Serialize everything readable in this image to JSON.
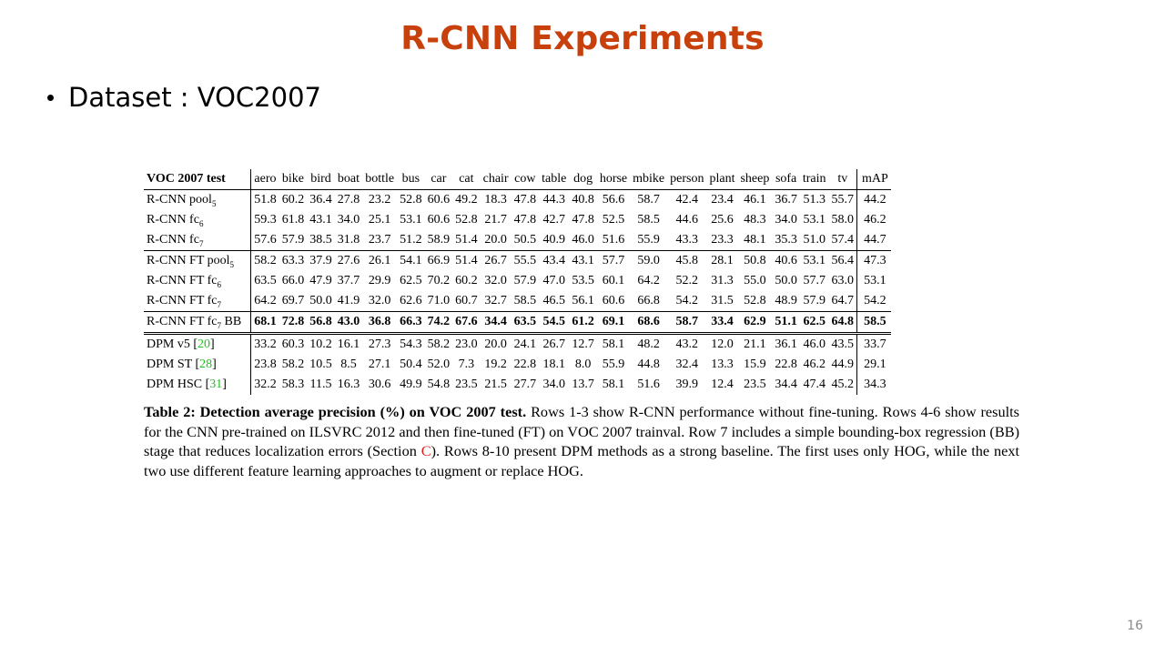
{
  "slide": {
    "title": "R-CNN Experiments",
    "bullet": "Dataset : VOC2007",
    "page_number": "16"
  },
  "table": {
    "corner_label": "VOC 2007 test",
    "columns": [
      "aero",
      "bike",
      "bird",
      "boat",
      "bottle",
      "bus",
      "car",
      "cat",
      "chair",
      "cow",
      "table",
      "dog",
      "horse",
      "mbike",
      "person",
      "plant",
      "sheep",
      "sofa",
      "train",
      "tv",
      "mAP"
    ],
    "rows": [
      {
        "label": "R-CNN pool",
        "sub": "5",
        "ref": "",
        "values": [
          "51.8",
          "60.2",
          "36.4",
          "27.8",
          "23.2",
          "52.8",
          "60.6",
          "49.2",
          "18.3",
          "47.8",
          "44.3",
          "40.8",
          "56.6",
          "58.7",
          "42.4",
          "23.4",
          "46.1",
          "36.7",
          "51.3",
          "55.7",
          "44.2"
        ]
      },
      {
        "label": "R-CNN fc",
        "sub": "6",
        "ref": "",
        "values": [
          "59.3",
          "61.8",
          "43.1",
          "34.0",
          "25.1",
          "53.1",
          "60.6",
          "52.8",
          "21.7",
          "47.8",
          "42.7",
          "47.8",
          "52.5",
          "58.5",
          "44.6",
          "25.6",
          "48.3",
          "34.0",
          "53.1",
          "58.0",
          "46.2"
        ]
      },
      {
        "label": "R-CNN fc",
        "sub": "7",
        "ref": "",
        "values": [
          "57.6",
          "57.9",
          "38.5",
          "31.8",
          "23.7",
          "51.2",
          "58.9",
          "51.4",
          "20.0",
          "50.5",
          "40.9",
          "46.0",
          "51.6",
          "55.9",
          "43.3",
          "23.3",
          "48.1",
          "35.3",
          "51.0",
          "57.4",
          "44.7"
        ]
      },
      {
        "label": "R-CNN FT pool",
        "sub": "5",
        "ref": "",
        "values": [
          "58.2",
          "63.3",
          "37.9",
          "27.6",
          "26.1",
          "54.1",
          "66.9",
          "51.4",
          "26.7",
          "55.5",
          "43.4",
          "43.1",
          "57.7",
          "59.0",
          "45.8",
          "28.1",
          "50.8",
          "40.6",
          "53.1",
          "56.4",
          "47.3"
        ]
      },
      {
        "label": "R-CNN FT fc",
        "sub": "6",
        "ref": "",
        "values": [
          "63.5",
          "66.0",
          "47.9",
          "37.7",
          "29.9",
          "62.5",
          "70.2",
          "60.2",
          "32.0",
          "57.9",
          "47.0",
          "53.5",
          "60.1",
          "64.2",
          "52.2",
          "31.3",
          "55.0",
          "50.0",
          "57.7",
          "63.0",
          "53.1"
        ]
      },
      {
        "label": "R-CNN FT fc",
        "sub": "7",
        "ref": "",
        "values": [
          "64.2",
          "69.7",
          "50.0",
          "41.9",
          "32.0",
          "62.6",
          "71.0",
          "60.7",
          "32.7",
          "58.5",
          "46.5",
          "56.1",
          "60.6",
          "66.8",
          "54.2",
          "31.5",
          "52.8",
          "48.9",
          "57.9",
          "64.7",
          "54.2"
        ]
      },
      {
        "label": "R-CNN FT fc",
        "sub": "7",
        "suffix": " BB",
        "ref": "",
        "values": [
          "68.1",
          "72.8",
          "56.8",
          "43.0",
          "36.8",
          "66.3",
          "74.2",
          "67.6",
          "34.4",
          "63.5",
          "54.5",
          "61.2",
          "69.1",
          "68.6",
          "58.7",
          "33.4",
          "62.9",
          "51.1",
          "62.5",
          "64.8",
          "58.5"
        ]
      },
      {
        "label": "DPM v5 ",
        "sub": "",
        "ref": "20",
        "values": [
          "33.2",
          "60.3",
          "10.2",
          "16.1",
          "27.3",
          "54.3",
          "58.2",
          "23.0",
          "20.0",
          "24.1",
          "26.7",
          "12.7",
          "58.1",
          "48.2",
          "43.2",
          "12.0",
          "21.1",
          "36.1",
          "46.0",
          "43.5",
          "33.7"
        ]
      },
      {
        "label": "DPM ST ",
        "sub": "",
        "ref": "28",
        "values": [
          "23.8",
          "58.2",
          "10.5",
          "8.5",
          "27.1",
          "50.4",
          "52.0",
          "7.3",
          "19.2",
          "22.8",
          "18.1",
          "8.0",
          "55.9",
          "44.8",
          "32.4",
          "13.3",
          "15.9",
          "22.8",
          "46.2",
          "44.9",
          "29.1"
        ]
      },
      {
        "label": "DPM HSC ",
        "sub": "",
        "ref": "31",
        "values": [
          "32.2",
          "58.3",
          "11.5",
          "16.3",
          "30.6",
          "49.9",
          "54.8",
          "23.5",
          "21.5",
          "27.7",
          "34.0",
          "13.7",
          "58.1",
          "51.6",
          "39.9",
          "12.4",
          "23.5",
          "34.4",
          "47.4",
          "45.2",
          "34.3"
        ]
      }
    ]
  },
  "caption": {
    "bold": "Table 2: Detection average precision (%) on VOC 2007 test.",
    "text_1": " Rows 1-3 show R-CNN performance without fine-tuning. Rows 4-6 show results for the CNN pre-trained on ILSVRC 2012 and then fine-tuned (FT) on VOC 2007 trainval. Row 7 includes a simple bounding-box regression (BB) stage that reduces localization errors (Section ",
    "section_ref": "C",
    "text_2": "). Rows 8-10 present DPM methods as a strong baseline.  The first uses only HOG, while the next two use different feature learning approaches to augment or replace HOG."
  },
  "colors": {
    "title": "#c8400c",
    "reference_link": "#20c020",
    "section_link": "#e02020",
    "page_number": "#8a8a8a"
  }
}
